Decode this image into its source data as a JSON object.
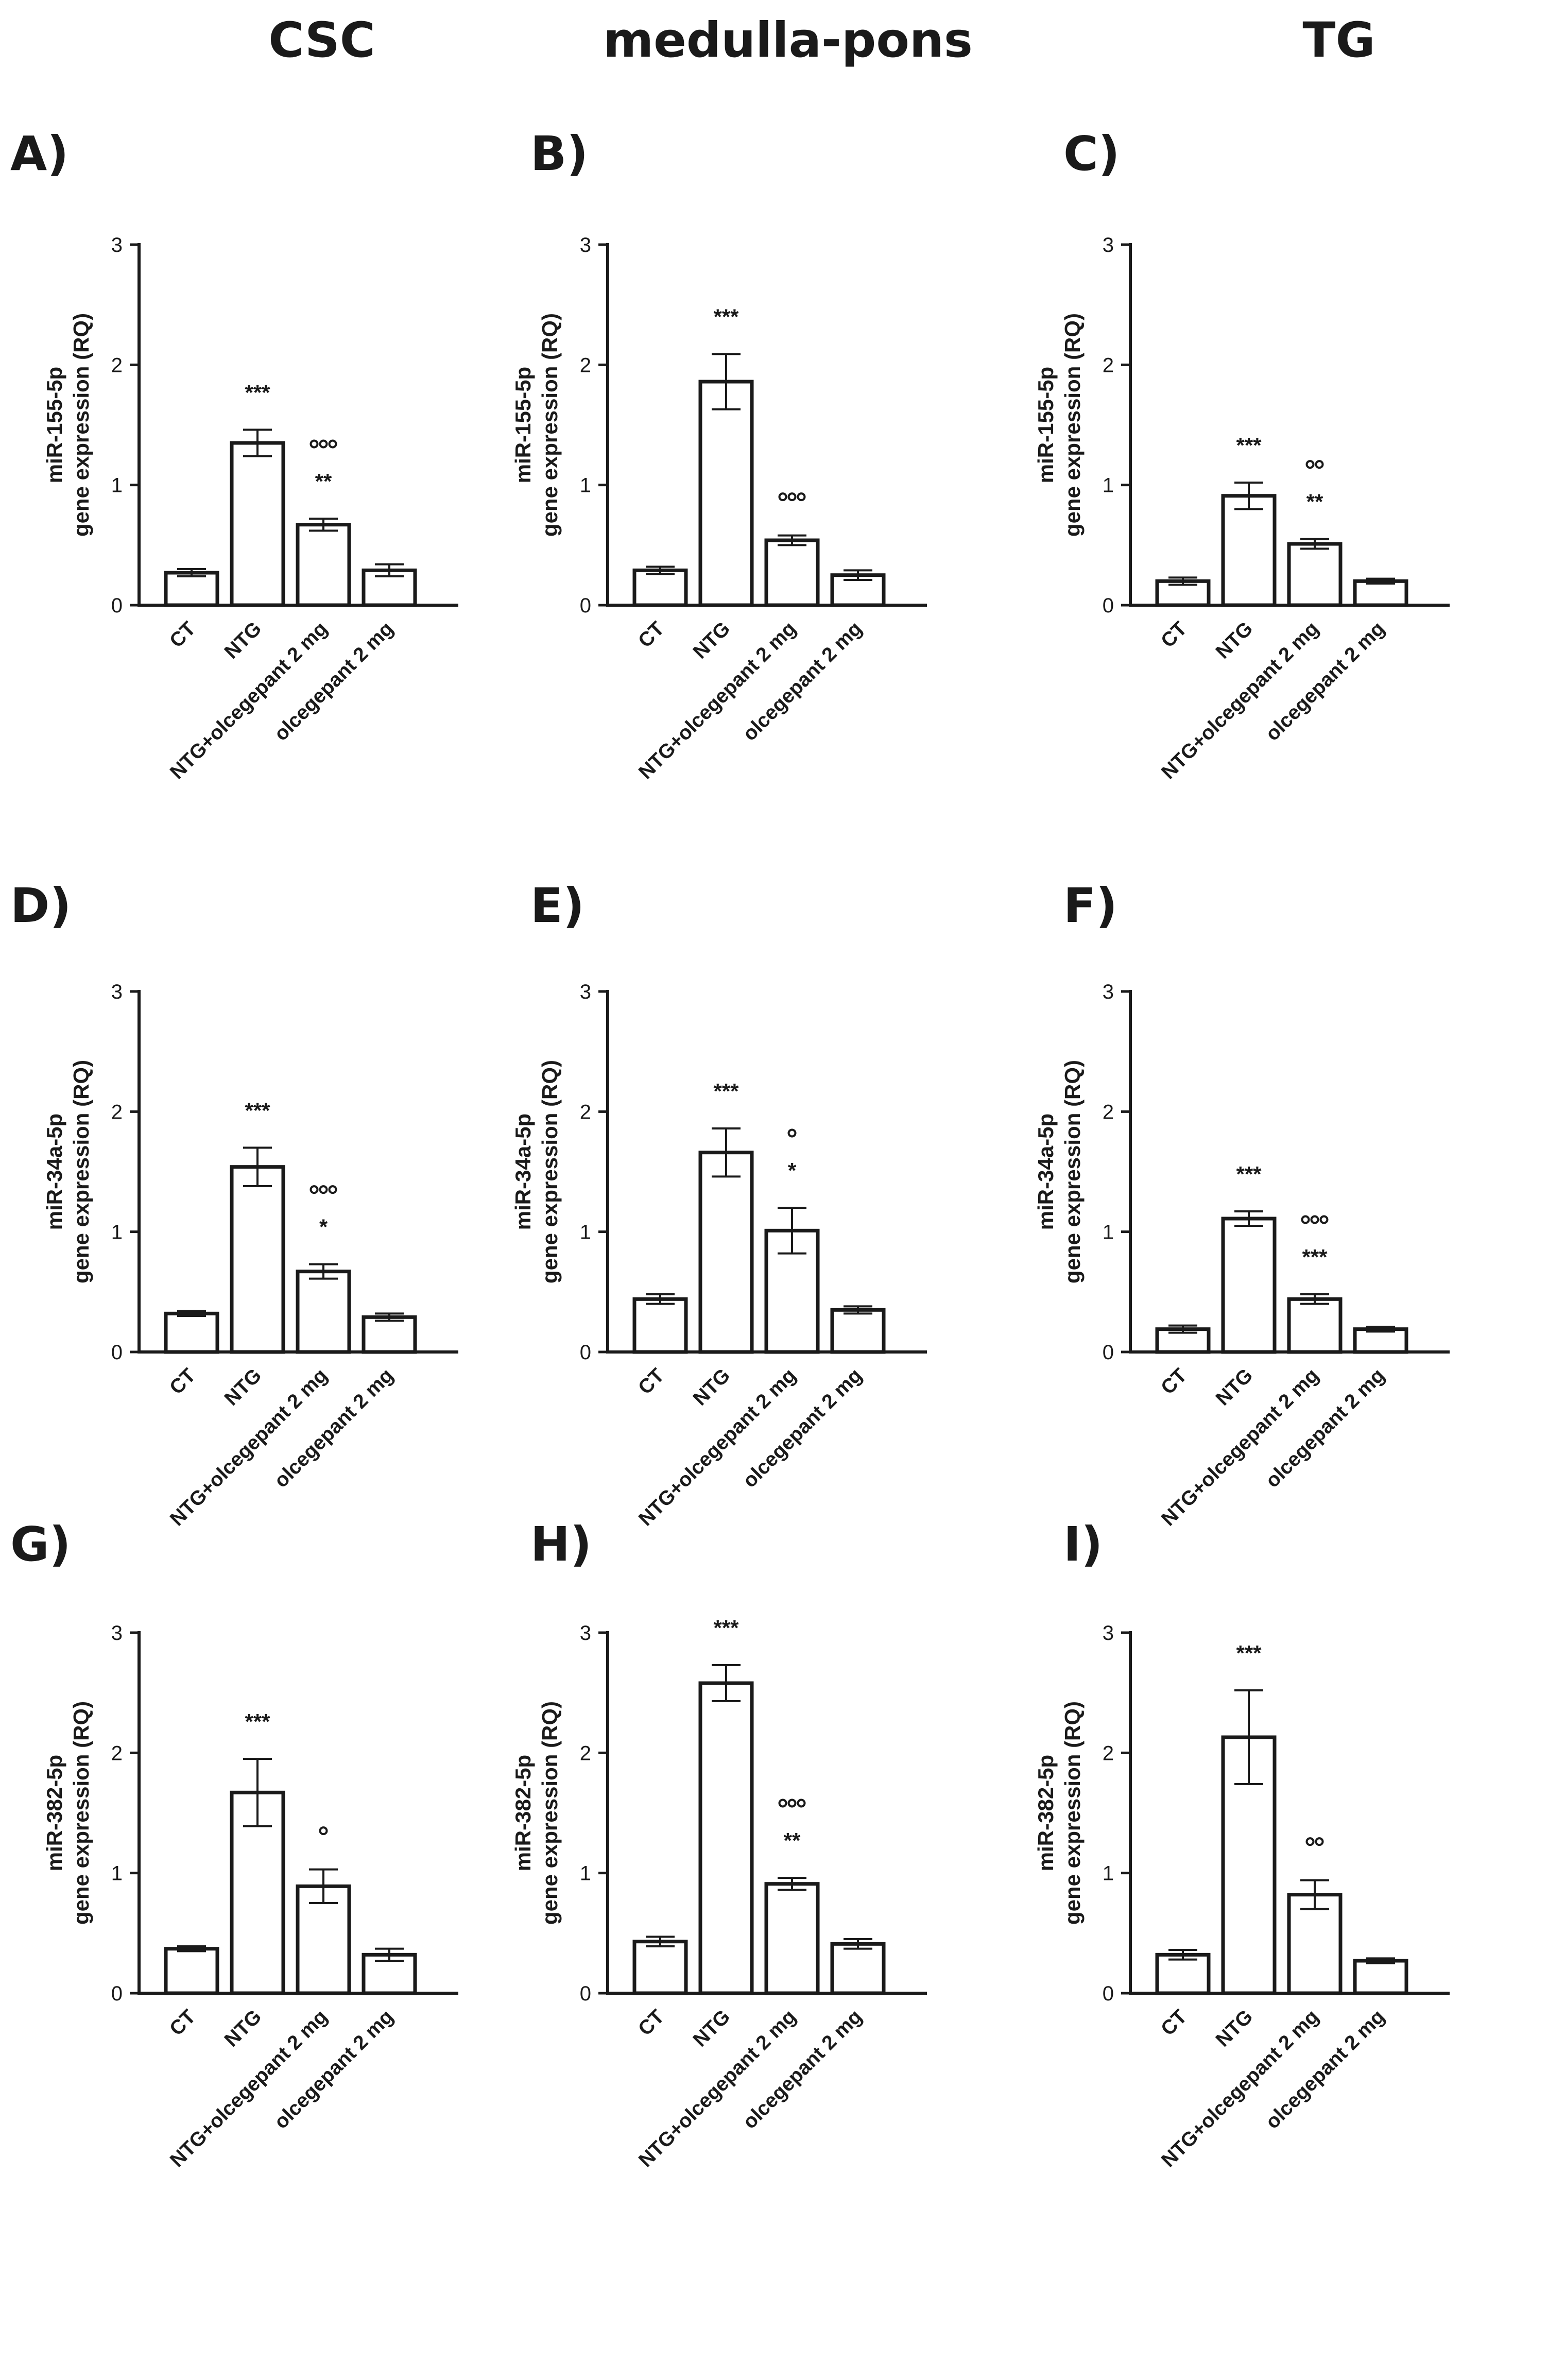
{
  "column_headers": [
    "CSC",
    "medulla-pons",
    "TG"
  ],
  "chart_data": [
    {
      "panel": "A)",
      "type": "bar",
      "column": "CSC",
      "ylabel": [
        "miR-155-5p",
        "gene expression (RQ)"
      ],
      "categories": [
        "CT",
        "NTG",
        "NTG+olcegepant 2 mg",
        "olcegepant 2 mg"
      ],
      "values": [
        0.27,
        1.35,
        0.67,
        0.29
      ],
      "errors": [
        0.03,
        0.11,
        0.05,
        0.05
      ],
      "significance": [
        "",
        "***",
        "**",
        ""
      ],
      "significance_circles": [
        0,
        0,
        3,
        0
      ],
      "ylim": [
        0,
        3
      ],
      "yticks": [
        "0",
        "1",
        "2",
        "3"
      ]
    },
    {
      "panel": "B)",
      "type": "bar",
      "column": "medulla-pons",
      "ylabel": [
        "miR-155-5p",
        "gene expression (RQ)"
      ],
      "categories": [
        "CT",
        "NTG",
        "NTG+olcegepant 2 mg",
        "olcegepant 2 mg"
      ],
      "values": [
        0.29,
        1.86,
        0.54,
        0.25
      ],
      "errors": [
        0.03,
        0.23,
        0.04,
        0.04
      ],
      "significance": [
        "",
        "***",
        "",
        ""
      ],
      "significance_circles": [
        0,
        0,
        3,
        0
      ],
      "ylim": [
        0,
        3
      ],
      "yticks": [
        "0",
        "1",
        "2",
        "3"
      ]
    },
    {
      "panel": "C)",
      "type": "bar",
      "column": "TG",
      "ylabel": [
        "miR-155-5p",
        "gene expression (RQ)"
      ],
      "categories": [
        "CT",
        "NTG",
        "NTG+olcegepant 2 mg",
        "olcegepant 2 mg"
      ],
      "values": [
        0.2,
        0.91,
        0.51,
        0.2
      ],
      "errors": [
        0.03,
        0.11,
        0.04,
        0.02
      ],
      "significance": [
        "",
        "***",
        "**",
        ""
      ],
      "significance_circles": [
        0,
        0,
        2,
        0
      ],
      "ylim": [
        0,
        3
      ],
      "yticks": [
        "0",
        "1",
        "2",
        "3"
      ]
    },
    {
      "panel": "D)",
      "type": "bar",
      "column": "CSC",
      "ylabel": [
        "miR-34a-5p",
        "gene expression (RQ)"
      ],
      "categories": [
        "CT",
        "NTG",
        "NTG+olcegepant 2 mg",
        "olcegepant 2 mg"
      ],
      "values": [
        0.32,
        1.54,
        0.67,
        0.29
      ],
      "errors": [
        0.02,
        0.16,
        0.06,
        0.03
      ],
      "significance": [
        "",
        "***",
        "*",
        ""
      ],
      "significance_circles": [
        0,
        0,
        3,
        0
      ],
      "ylim": [
        0,
        3
      ],
      "yticks": [
        "0",
        "1",
        "2",
        "3"
      ]
    },
    {
      "panel": "E)",
      "type": "bar",
      "column": "medulla-pons",
      "ylabel": [
        "miR-34a-5p",
        "gene expression (RQ)"
      ],
      "categories": [
        "CT",
        "NTG",
        "NTG+olcegepant 2 mg",
        "olcegepant 2 mg"
      ],
      "values": [
        0.44,
        1.66,
        1.01,
        0.35
      ],
      "errors": [
        0.04,
        0.2,
        0.19,
        0.03
      ],
      "significance": [
        "",
        "***",
        "*",
        ""
      ],
      "significance_circles": [
        0,
        0,
        1,
        0
      ],
      "ylim": [
        0,
        3
      ],
      "yticks": [
        "0",
        "1",
        "2",
        "3"
      ]
    },
    {
      "panel": "F)",
      "type": "bar",
      "column": "TG",
      "ylabel": [
        "miR-34a-5p",
        "gene expression (RQ)"
      ],
      "categories": [
        "CT",
        "NTG",
        "NTG+olcegepant 2 mg",
        "olcegepant 2 mg"
      ],
      "values": [
        0.19,
        1.11,
        0.44,
        0.19
      ],
      "errors": [
        0.03,
        0.06,
        0.04,
        0.02
      ],
      "significance": [
        "",
        "***",
        "***",
        ""
      ],
      "significance_circles": [
        0,
        0,
        3,
        0
      ],
      "ylim": [
        0,
        3
      ],
      "yticks": [
        "0",
        "1",
        "2",
        "3"
      ]
    },
    {
      "panel": "G)",
      "type": "bar",
      "column": "CSC",
      "ylabel": [
        "miR-382-5p",
        "gene expression (RQ)"
      ],
      "categories": [
        "CT",
        "NTG",
        "NTG+olcegepant 2 mg",
        "olcegepant 2 mg"
      ],
      "values": [
        0.37,
        1.67,
        0.89,
        0.32
      ],
      "errors": [
        0.02,
        0.28,
        0.14,
        0.05
      ],
      "significance": [
        "",
        "***",
        "",
        ""
      ],
      "significance_circles": [
        0,
        0,
        1,
        0
      ],
      "ylim": [
        0,
        3
      ],
      "yticks": [
        "0",
        "1",
        "2",
        "3"
      ]
    },
    {
      "panel": "H)",
      "type": "bar",
      "column": "medulla-pons",
      "ylabel": [
        "miR-382-5p",
        "gene expression (RQ)"
      ],
      "categories": [
        "CT",
        "NTG",
        "NTG+olcegepant 2 mg",
        "olcegepant 2 mg"
      ],
      "values": [
        0.43,
        2.58,
        0.91,
        0.41
      ],
      "errors": [
        0.04,
        0.15,
        0.05,
        0.04
      ],
      "significance": [
        "",
        "***",
        "**",
        ""
      ],
      "significance_circles": [
        0,
        0,
        3,
        0
      ],
      "ylim": [
        0,
        3
      ],
      "yticks": [
        "0",
        "1",
        "2",
        "3"
      ]
    },
    {
      "panel": "I)",
      "type": "bar",
      "column": "TG",
      "ylabel": [
        "miR-382-5p",
        "gene expression (RQ)"
      ],
      "categories": [
        "CT",
        "NTG",
        "NTG+olcegepant 2 mg",
        "olcegepant 2 mg"
      ],
      "values": [
        0.32,
        2.13,
        0.82,
        0.27
      ],
      "errors": [
        0.04,
        0.39,
        0.12,
        0.02
      ],
      "significance": [
        "",
        "***",
        "",
        ""
      ],
      "significance_circles": [
        0,
        0,
        2,
        0
      ],
      "ylim": [
        0,
        3
      ],
      "yticks": [
        "0",
        "1",
        "2",
        "3"
      ]
    }
  ]
}
